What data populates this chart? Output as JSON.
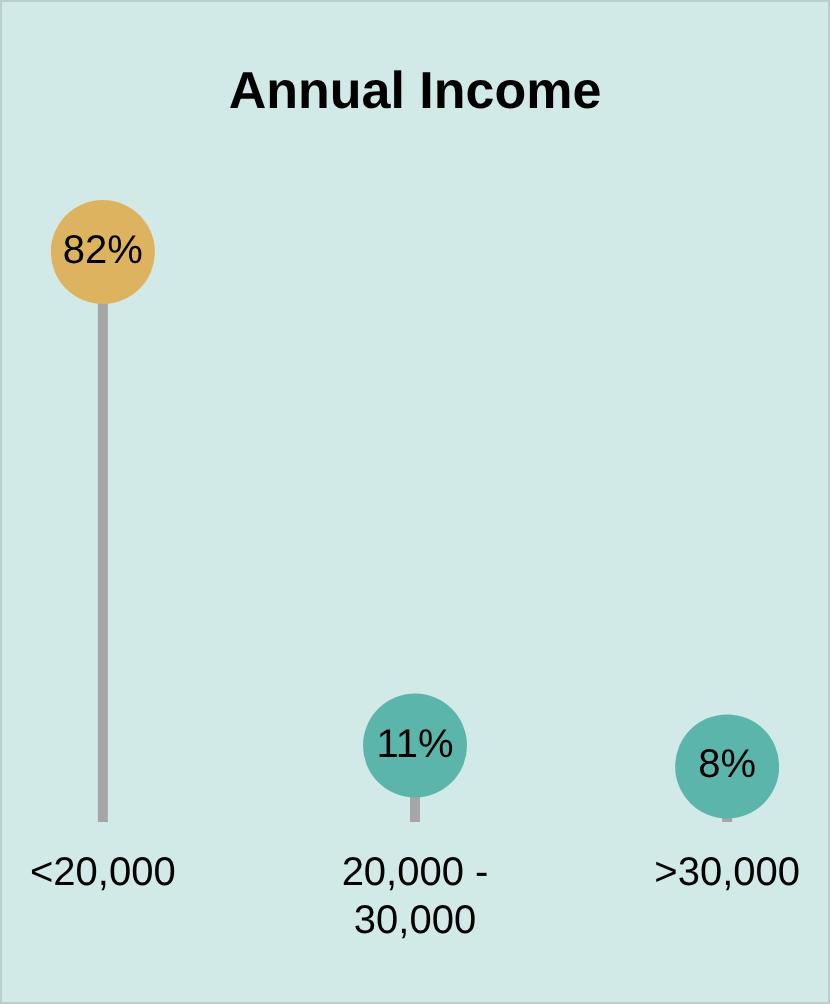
{
  "chart_data": {
    "type": "lollipop",
    "title": "Annual Income",
    "categories": [
      "<20,000",
      "20,000 - 30,000",
      ">30,000"
    ],
    "values": [
      82,
      11,
      8
    ],
    "colors": [
      "#ddb35f",
      "#5bb5aa",
      "#5bb5aa"
    ],
    "color": "#a6a6a6",
    "value_labels": [
      "82%",
      "11%",
      "8%"
    ],
    "tick_labels": "x"
  }
}
